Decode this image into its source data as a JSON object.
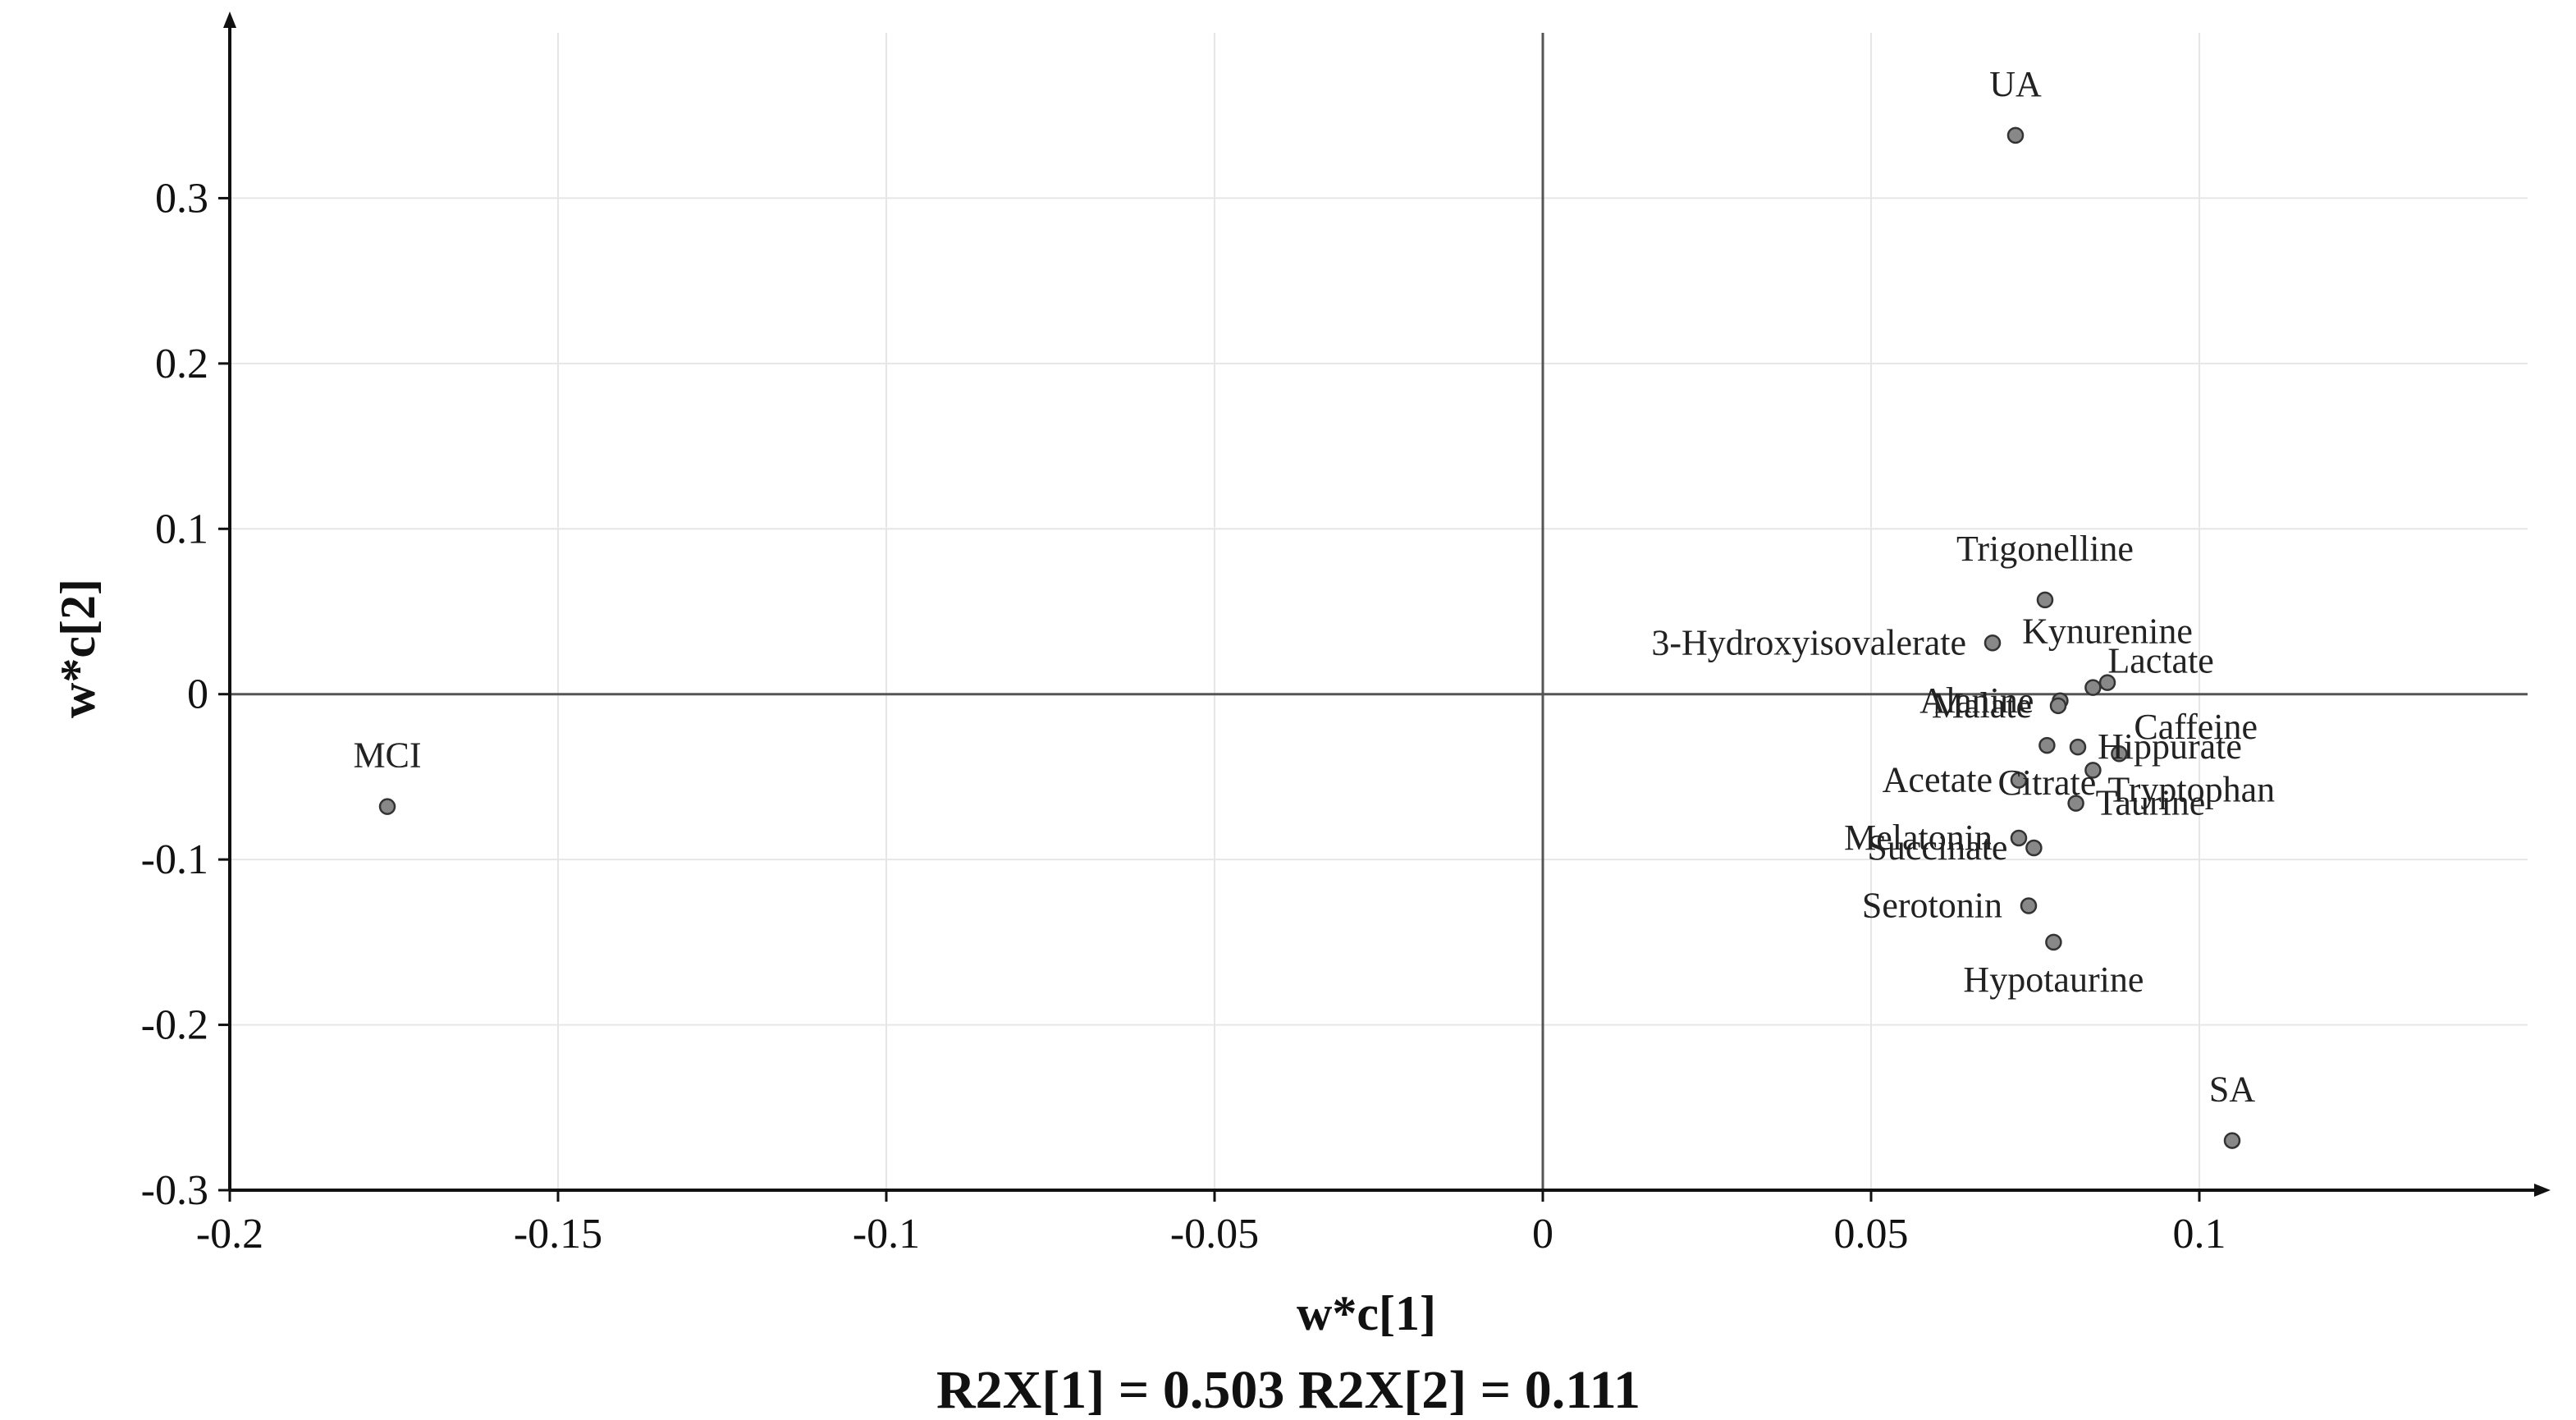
{
  "chart_data": {
    "type": "scatter",
    "xlabel": "w*c[1]",
    "ylabel": "w*c[2]",
    "footer": "R2X[1] = 0.503 R2X[2] = 0.111",
    "xlim": [
      -0.2,
      0.15
    ],
    "ylim": [
      -0.3,
      0.4
    ],
    "x_ticks": [
      -0.2,
      -0.15,
      -0.1,
      -0.05,
      0,
      0.05,
      0.1
    ],
    "x_tick_labels": [
      "-0.2",
      "-0.15",
      "-0.1",
      "-0.05",
      "0",
      "0.05",
      "0.1"
    ],
    "y_ticks": [
      -0.3,
      -0.2,
      -0.1,
      0,
      0.1,
      0.2,
      0.3
    ],
    "y_tick_labels": [
      "-0.3",
      "-0.2",
      "-0.1",
      "0",
      "0.1",
      "0.2",
      "0.3"
    ],
    "grid": true,
    "reference_lines": {
      "x": 0,
      "y": 0
    },
    "point_color": "#888888",
    "points": [
      {
        "name": "UA",
        "x": 0.072,
        "y": 0.338,
        "label_pos": "above"
      },
      {
        "name": "MCI",
        "x": -0.176,
        "y": -0.068,
        "label_pos": "above"
      },
      {
        "name": "SA",
        "x": 0.105,
        "y": -0.27,
        "label_pos": "above"
      },
      {
        "name": "Trigonelline",
        "x": 0.0765,
        "y": 0.057,
        "label_pos": "above"
      },
      {
        "name": "3-Hydroxyisovalerate",
        "x": 0.0685,
        "y": 0.031,
        "label_pos": "left"
      },
      {
        "name": "Lactate",
        "x": 0.0838,
        "y": 0.004,
        "label_pos": "above-right"
      },
      {
        "name": "Kynurenine",
        "x": 0.086,
        "y": 0.007,
        "label_pos": "above"
      },
      {
        "name": "Alanine",
        "x": 0.0788,
        "y": -0.004,
        "label_pos": "left"
      },
      {
        "name": "Malate",
        "x": 0.0785,
        "y": -0.007,
        "label_pos": "left"
      },
      {
        "name": "Caffeine",
        "x": 0.0878,
        "y": -0.036,
        "label_pos": "above-right"
      },
      {
        "name": "Hippurate",
        "x": 0.0815,
        "y": -0.032,
        "label_pos": "right"
      },
      {
        "name": "Acetate",
        "x": 0.0725,
        "y": -0.052,
        "label_pos": "left"
      },
      {
        "name": "Taurine",
        "x": 0.0812,
        "y": -0.066,
        "label_pos": "right"
      },
      {
        "name": "Tryptophan",
        "x": 0.0838,
        "y": -0.046,
        "label_pos": "below-right"
      },
      {
        "name": "Melatonin",
        "x": 0.0725,
        "y": -0.087,
        "label_pos": "left"
      },
      {
        "name": "Succinate",
        "x": 0.0748,
        "y": -0.093,
        "label_pos": "left"
      },
      {
        "name": "Citrate",
        "x": 0.0768,
        "y": -0.031,
        "label_pos": "below"
      },
      {
        "name": "Serotonin",
        "x": 0.074,
        "y": -0.128,
        "label_pos": "left"
      },
      {
        "name": "Hypotaurine",
        "x": 0.0778,
        "y": -0.15,
        "label_pos": "below"
      }
    ]
  }
}
